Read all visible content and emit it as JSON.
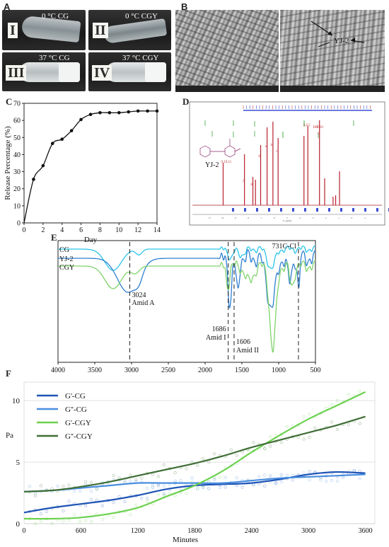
{
  "panels": {
    "A": "A",
    "B": "B",
    "C": "C",
    "D": "D",
    "E": "E",
    "F": "F"
  },
  "panel_a": {
    "photos": [
      {
        "roman": "I",
        "label": "0 °C CG"
      },
      {
        "roman": "II",
        "label": "0 °C CGY"
      },
      {
        "roman": "III",
        "label": "37 °C CG"
      },
      {
        "roman": "IV",
        "label": "37 °C CGY"
      }
    ]
  },
  "panel_b": {
    "annotation": "YJ-2"
  },
  "panel_d": {
    "compound_label": "YJ-2",
    "solvent_label": "DMSO",
    "peak_labels": [
      "9,10,11",
      "7",
      "8",
      "6",
      "a",
      "b",
      "c",
      "3,4,5",
      "2",
      "1"
    ],
    "x_unit": "f1 (ppm)"
  },
  "chart_data": [
    {
      "panel": "C",
      "type": "line",
      "title": "",
      "xlabel": "Day",
      "ylabel": "Release Percentage (%)",
      "xlim": [
        0,
        14
      ],
      "ylim": [
        0,
        70
      ],
      "xticks": [
        0,
        2,
        4,
        6,
        8,
        10,
        12,
        14
      ],
      "yticks": [
        0,
        10,
        20,
        30,
        40,
        50,
        60,
        70
      ],
      "series": [
        {
          "x": [
            1,
            2,
            3,
            4,
            5,
            6,
            7,
            8,
            9,
            10,
            11,
            12,
            13,
            14
          ],
          "values": [
            25.5,
            33.5,
            46.5,
            49,
            54,
            60.5,
            63.5,
            64.5,
            64.5,
            64.5,
            65,
            65.5,
            65.5,
            65.5
          ]
        }
      ]
    },
    {
      "panel": "E",
      "type": "line",
      "title": "",
      "xlabel": "",
      "ylabel": "",
      "xlim": [
        4000,
        500
      ],
      "xticks": [
        4000,
        3500,
        3000,
        2500,
        2000,
        1500,
        1000,
        500
      ],
      "series": [
        {
          "name": "CG",
          "color": "#29c4e8"
        },
        {
          "name": "YJ-2",
          "color": "#2e7fd1"
        },
        {
          "name": "CGY",
          "color": "#7fd36b"
        }
      ],
      "annotations": [
        {
          "x": 3024,
          "lines": [
            "3024",
            "Amid A"
          ]
        },
        {
          "x": 1686,
          "lines": [
            "1686",
            "Amid I"
          ]
        },
        {
          "x": 1606,
          "lines": [
            "1606",
            "Amid II"
          ]
        },
        {
          "x": 731,
          "lines": [
            "731C-Cl"
          ]
        }
      ]
    },
    {
      "panel": "F",
      "type": "line",
      "title": "",
      "xlabel": "Minutes",
      "ylabel": "Pa",
      "xlim": [
        0,
        3700
      ],
      "ylim": [
        0,
        11.5
      ],
      "xticks": [
        0,
        600,
        1200,
        1800,
        2400,
        3000,
        3600
      ],
      "yticks": [
        0,
        5,
        10
      ],
      "legend_position": "top-left",
      "series": [
        {
          "name": "G'-CG",
          "color": "#1f54b5",
          "x": [
            0,
            300,
            600,
            900,
            1200,
            1500,
            1800,
            2100,
            2400,
            2700,
            3000,
            3300,
            3600
          ],
          "values": [
            0.9,
            1.3,
            1.6,
            1.9,
            2.3,
            2.8,
            3.1,
            3.2,
            3.3,
            3.6,
            4.0,
            4.2,
            4.1
          ]
        },
        {
          "name": "G''-CG",
          "color": "#4a8ee0",
          "x": [
            0,
            300,
            600,
            900,
            1200,
            1500,
            1800,
            2100,
            2400,
            2700,
            3000,
            3300,
            3600
          ],
          "values": [
            2.6,
            2.7,
            2.9,
            3.1,
            3.3,
            3.3,
            3.3,
            3.3,
            3.5,
            3.7,
            3.8,
            3.9,
            4.0
          ]
        },
        {
          "name": "G'-CGY",
          "color": "#6cd14f",
          "x": [
            0,
            300,
            600,
            900,
            1200,
            1500,
            1800,
            2100,
            2400,
            2700,
            3000,
            3300,
            3600
          ],
          "values": [
            0.4,
            0.4,
            0.5,
            0.8,
            1.3,
            2.2,
            3.1,
            4.3,
            5.8,
            7.2,
            8.5,
            9.6,
            10.7
          ]
        },
        {
          "name": "G''-CGY",
          "color": "#3f6e35",
          "x": [
            0,
            300,
            600,
            900,
            1200,
            1500,
            1800,
            2100,
            2400,
            2700,
            3000,
            3300,
            3600
          ],
          "values": [
            2.6,
            2.7,
            3.0,
            3.4,
            3.9,
            4.4,
            4.9,
            5.5,
            6.2,
            6.8,
            7.4,
            8.0,
            8.7
          ]
        }
      ]
    }
  ]
}
